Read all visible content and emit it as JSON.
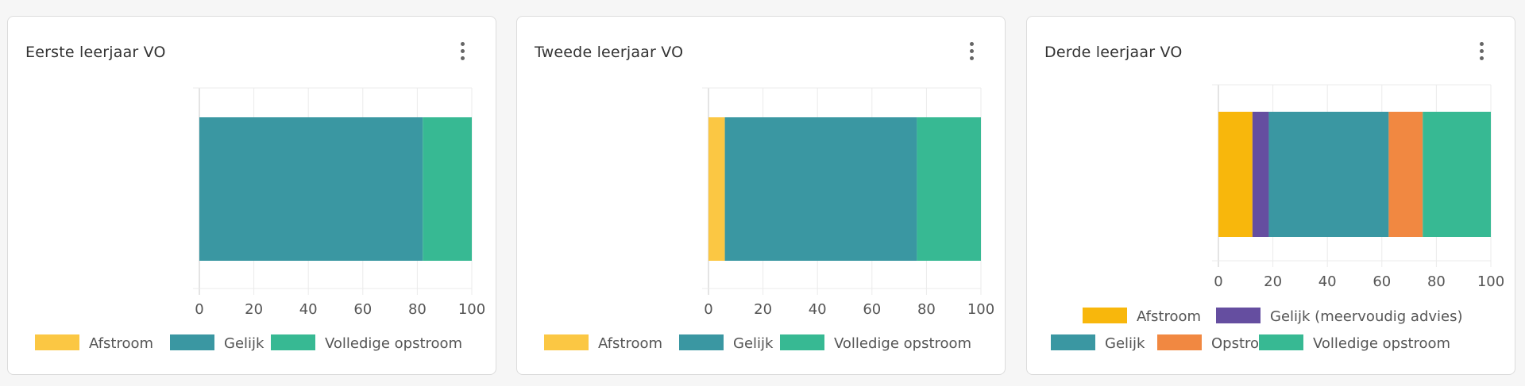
{
  "chart_data": [
    {
      "type": "bar",
      "orientation": "horizontal",
      "stacked": true,
      "title": "Eerste leerjaar VO",
      "xlim": [
        0,
        100
      ],
      "xticks": [
        0,
        20,
        40,
        60,
        80,
        100
      ],
      "grid": true,
      "legend_placement": "bottom",
      "series": [
        {
          "name": "Afstroom",
          "value": 0,
          "color": "#fbc743"
        },
        {
          "name": "Gelijk",
          "value": 82,
          "color": "#3a97a2"
        },
        {
          "name": "Volledige opstroom",
          "value": 18,
          "color": "#37b993"
        }
      ],
      "legend": [
        "Afstroom",
        "Gelijk",
        "Volledige opstroom"
      ]
    },
    {
      "type": "bar",
      "orientation": "horizontal",
      "stacked": true,
      "title": "Tweede leerjaar VO",
      "xlim": [
        0,
        100
      ],
      "xticks": [
        0,
        20,
        40,
        60,
        80,
        100
      ],
      "grid": true,
      "legend_placement": "bottom",
      "series": [
        {
          "name": "Afstroom",
          "value": 6,
          "color": "#fbc743"
        },
        {
          "name": "Gelijk",
          "value": 70.5,
          "color": "#3a97a2"
        },
        {
          "name": "Volledige opstroom",
          "value": 23.5,
          "color": "#37b993"
        }
      ],
      "legend": [
        "Afstroom",
        "Gelijk",
        "Volledige opstroom"
      ]
    },
    {
      "type": "bar",
      "orientation": "horizontal",
      "stacked": true,
      "title": "Derde leerjaar VO",
      "xlim": [
        0,
        100
      ],
      "xticks": [
        0,
        20,
        40,
        60,
        80,
        100
      ],
      "grid": true,
      "legend_placement": "bottom",
      "series": [
        {
          "name": "Afstroom",
          "value": 12.5,
          "color": "#f8b70c"
        },
        {
          "name": "Gelijk (meervoudig advies)",
          "value": 6,
          "color": "#654ea0"
        },
        {
          "name": "Gelijk",
          "value": 44,
          "color": "#3a97a2"
        },
        {
          "name": "Opstroom",
          "value": 12.5,
          "color": "#f18841"
        },
        {
          "name": "Volledige opstroom",
          "value": 25,
          "color": "#37b993"
        }
      ],
      "legend": [
        "Afstroom",
        "Gelijk (meervoudig advies)",
        "Gelijk",
        "Opstroom",
        "Volledige opstroom"
      ]
    }
  ]
}
